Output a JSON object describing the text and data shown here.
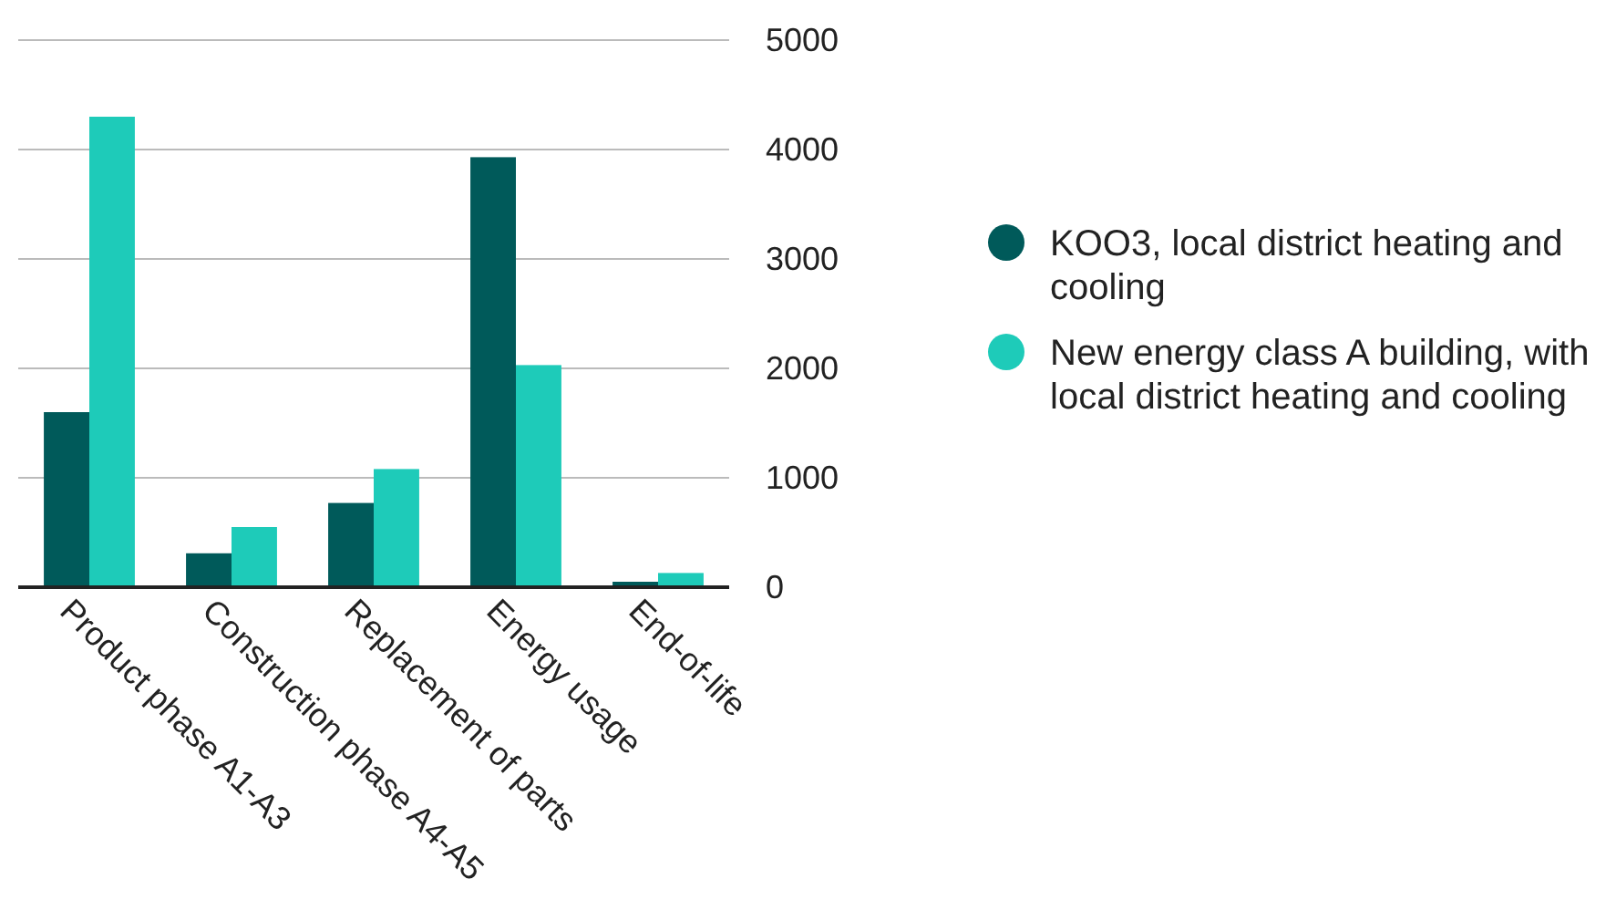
{
  "chart_data": {
    "type": "bar",
    "categories": [
      "Product phase A1-A3",
      "Construction phase A4-A5",
      "Replacement of parts",
      "Energy usage",
      "End-of-life"
    ],
    "series": [
      {
        "name": "KOO3, local district heating and cooling",
        "color": "#005a5a",
        "values": [
          1600,
          310,
          770,
          3930,
          50
        ]
      },
      {
        "name": "New energy class A building, with local district heating and cooling",
        "color": "#1ecbb9",
        "values": [
          4300,
          550,
          1080,
          2030,
          130
        ]
      }
    ],
    "ylim": [
      0,
      5000
    ],
    "yticks": [
      0,
      1000,
      2000,
      3000,
      4000,
      5000
    ],
    "grid": "y",
    "legend": "right"
  }
}
